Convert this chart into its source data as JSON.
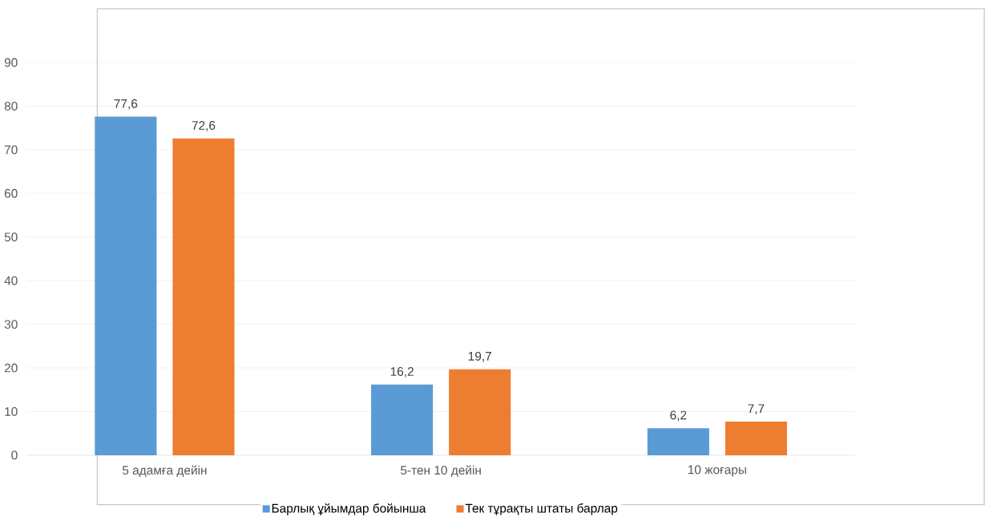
{
  "chart_data": {
    "type": "bar",
    "categories": [
      "5 адамға дейін",
      "5-тен 10 дейін",
      "10 жоғары"
    ],
    "series": [
      {
        "name": "Барлық ұйымдар бойынша",
        "color": "#5b9bd5",
        "values": [
          77.6,
          16.2,
          6.2
        ],
        "value_labels": [
          "77,6",
          "16,2",
          "6,2"
        ]
      },
      {
        "name": "Тек тұрақты штаты барлар",
        "color": "#ed7d31",
        "values": [
          72.6,
          19.7,
          7.7
        ],
        "value_labels": [
          "72,6",
          "19,7",
          "7,7"
        ]
      }
    ],
    "ylim": [
      0,
      90
    ],
    "yticks": [
      0,
      10,
      20,
      30,
      40,
      50,
      60,
      70,
      80,
      90
    ],
    "grid": "y",
    "legend": "bottom"
  }
}
